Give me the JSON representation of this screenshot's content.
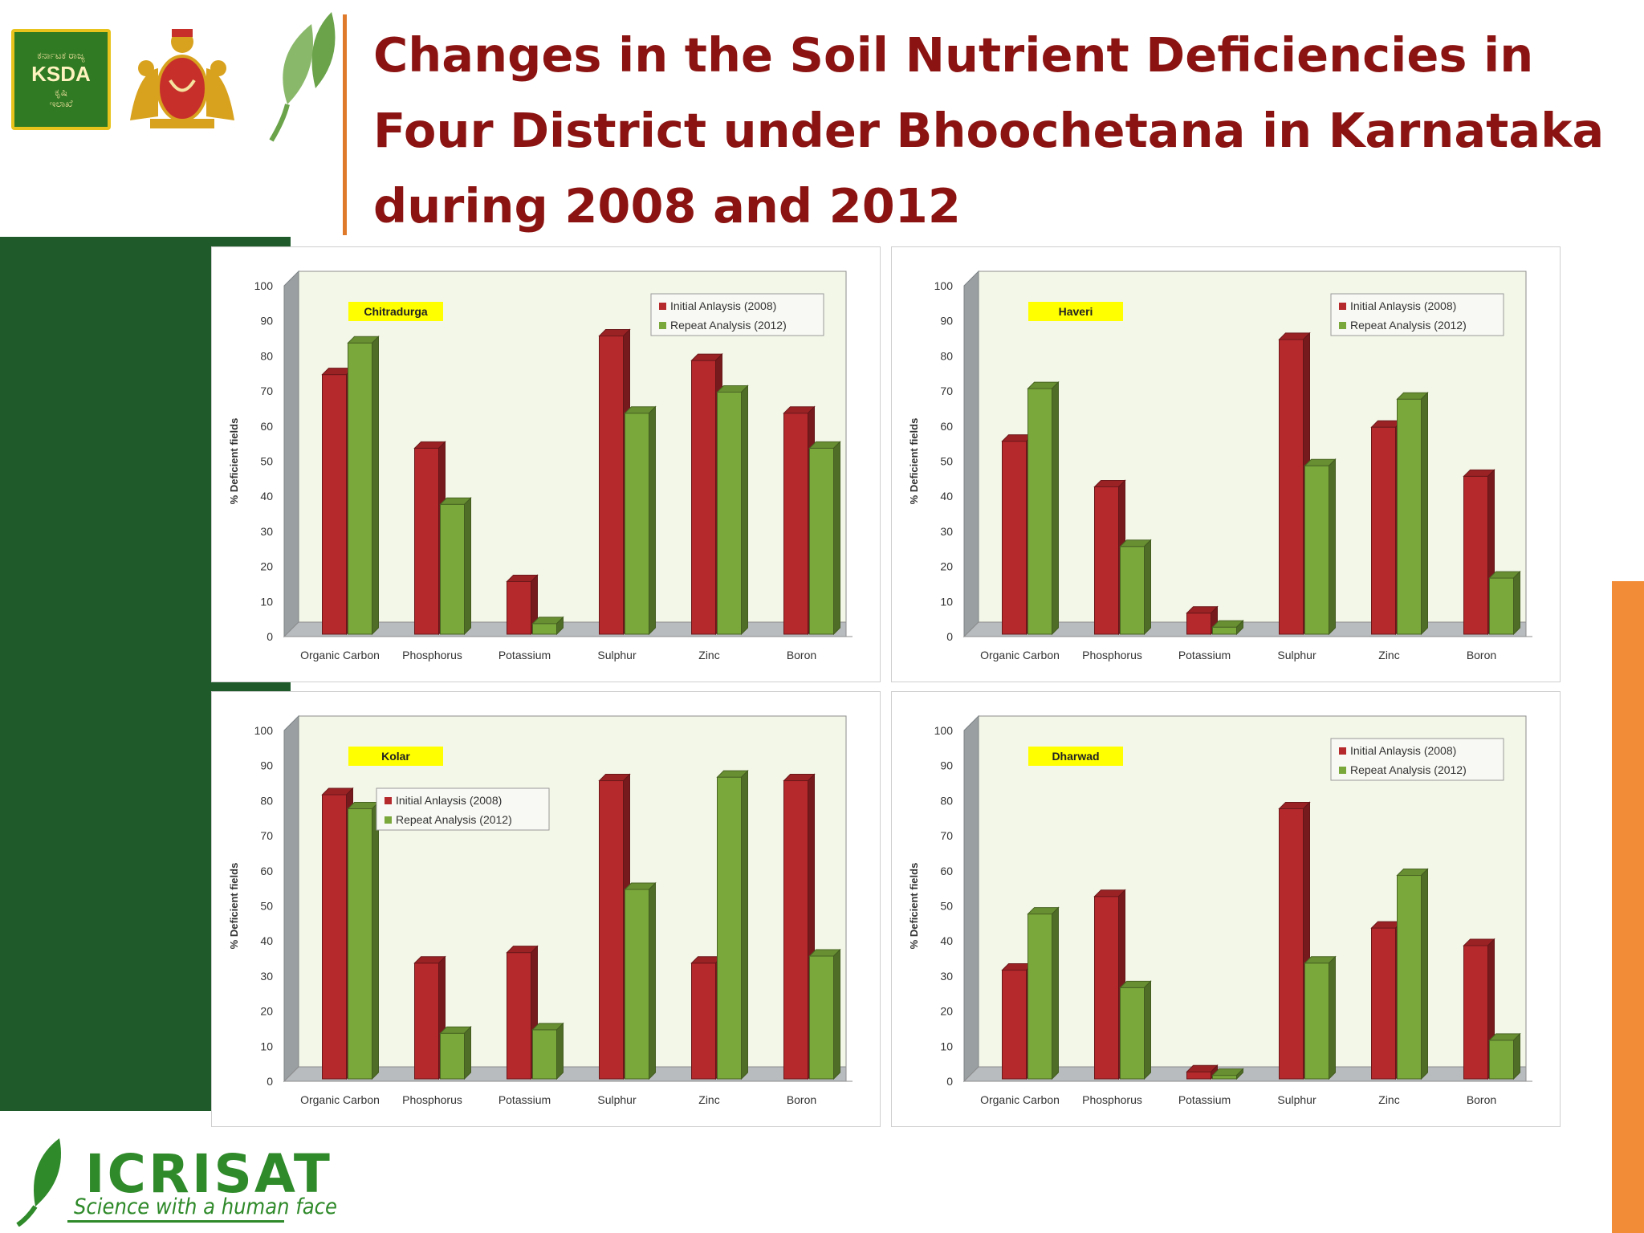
{
  "title": "Changes in the Soil Nutrient Deficiencies in Four District under Bhoochetana in Karnataka during 2008 and 2012",
  "logos": {
    "ksda": {
      "top": "ಕರ್ನಾಟಕ ರಾಜ್ಯ",
      "name": "KSDA",
      "bottom1": "ಕೃಷಿ",
      "bottom2": "ಇಲಾಖೆ"
    },
    "icrisat": {
      "name": "ICRISAT",
      "tagline": "Science with a human face"
    }
  },
  "colors": {
    "initial": "#b5282c",
    "repeat": "#7aa83b",
    "district_label_bg": "#ffff00",
    "title": "#8b1412"
  },
  "chart_data": [
    {
      "type": "bar",
      "district": "Chitradurga",
      "legend_position": "top-right",
      "categories": [
        "Organic Carbon",
        "Phosphorus",
        "Potassium",
        "Sulphur",
        "Zinc",
        "Boron"
      ],
      "series": [
        {
          "name": "Initial Anlaysis (2008)",
          "values": [
            74,
            53,
            15,
            85,
            78,
            63
          ]
        },
        {
          "name": "Repeat Analysis (2012)",
          "values": [
            83,
            37,
            3,
            63,
            69,
            53
          ]
        }
      ],
      "ylabel": "% Deficient fields",
      "ylim": [
        0,
        100
      ],
      "yticks": [
        "0",
        "10",
        "20",
        "30",
        "40",
        "50",
        "60",
        "70",
        "80",
        "90",
        "100"
      ]
    },
    {
      "type": "bar",
      "district": "Haveri",
      "legend_position": "top-right",
      "categories": [
        "Organic Carbon",
        "Phosphorus",
        "Potassium",
        "Sulphur",
        "Zinc",
        "Boron"
      ],
      "series": [
        {
          "name": "Initial Anlaysis (2008)",
          "values": [
            55,
            42,
            6,
            84,
            59,
            45
          ]
        },
        {
          "name": "Repeat Analysis (2012)",
          "values": [
            70,
            25,
            2,
            48,
            67,
            16
          ]
        }
      ],
      "ylabel": "% Deficient fields",
      "ylim": [
        0,
        100
      ],
      "yticks": [
        "0",
        "10",
        "20",
        "30",
        "40",
        "50",
        "60",
        "70",
        "80",
        "90",
        "100"
      ]
    },
    {
      "type": "bar",
      "district": "Kolar",
      "legend_position": "top-left",
      "categories": [
        "Organic Carbon",
        "Phosphorus",
        "Potassium",
        "Sulphur",
        "Zinc",
        "Boron"
      ],
      "series": [
        {
          "name": "Initial Anlaysis (2008)",
          "values": [
            81,
            33,
            36,
            85,
            33,
            85
          ]
        },
        {
          "name": "Repeat Analysis (2012)",
          "values": [
            77,
            13,
            14,
            54,
            86,
            35
          ]
        }
      ],
      "ylabel": "% Deficient fields",
      "ylim": [
        0,
        100
      ],
      "yticks": [
        "0",
        "10",
        "20",
        "30",
        "40",
        "50",
        "60",
        "70",
        "80",
        "90",
        "100"
      ]
    },
    {
      "type": "bar",
      "district": "Dharwad",
      "legend_position": "top-right",
      "categories": [
        "Organic Carbon",
        "Phosphorus",
        "Potassium",
        "Sulphur",
        "Zinc",
        "Boron"
      ],
      "series": [
        {
          "name": "Initial Anlaysis (2008)",
          "values": [
            31,
            52,
            2,
            77,
            43,
            38
          ]
        },
        {
          "name": "Repeat Analysis (2012)",
          "values": [
            47,
            26,
            1,
            33,
            58,
            11
          ]
        }
      ],
      "ylabel": "% Deficient fields",
      "ylim": [
        0,
        100
      ],
      "yticks": [
        "0",
        "10",
        "20",
        "30",
        "40",
        "50",
        "60",
        "70",
        "80",
        "90",
        "100"
      ]
    }
  ]
}
